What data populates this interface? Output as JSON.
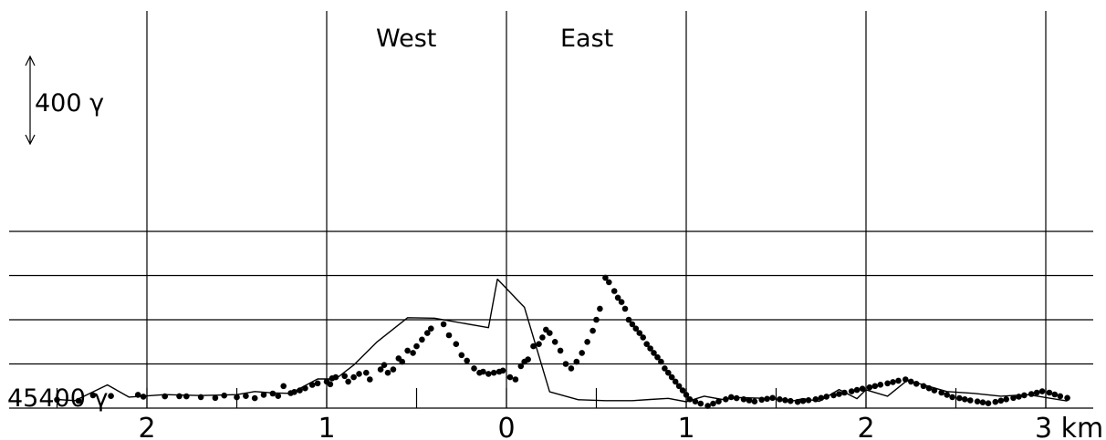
{
  "chart_data": {
    "type": "scatter",
    "title": "",
    "xlabel": "",
    "ylabel": "",
    "unit": "km",
    "baseline_label": "45400 γ",
    "scale_bar_label": "400 γ",
    "scale_bar_value": 400,
    "direction_labels": [
      "West",
      "East"
    ],
    "x_tick_labels": [
      "2",
      "1",
      "0",
      "1",
      "2",
      "3 km"
    ],
    "x_tick_values": [
      -2,
      -1,
      0,
      1,
      2,
      3
    ],
    "xlim": [
      -2.55,
      3.22
    ],
    "ylim": [
      45400,
      46200
    ],
    "grid": true,
    "series": [
      {
        "kind": "line",
        "points": [
          [
            -2.5,
            45439
          ],
          [
            -2.4,
            45434
          ],
          [
            -2.22,
            45505
          ],
          [
            -2.1,
            45450
          ],
          [
            -1.9,
            45461
          ],
          [
            -1.7,
            45457
          ],
          [
            -1.5,
            45461
          ],
          [
            -1.4,
            45475
          ],
          [
            -1.3,
            45469
          ],
          [
            -1.2,
            45467
          ],
          [
            -1.05,
            45532
          ],
          [
            -0.95,
            45532
          ],
          [
            -0.85,
            45595
          ],
          [
            -0.72,
            45700
          ],
          [
            -0.55,
            45809
          ],
          [
            -0.4,
            45807
          ],
          [
            -0.1,
            45764
          ],
          [
            -0.05,
            45984
          ],
          [
            0.1,
            45856
          ],
          [
            0.24,
            45474
          ],
          [
            0.4,
            45438
          ],
          [
            0.55,
            45434
          ],
          [
            0.7,
            45434
          ],
          [
            0.8,
            45439
          ],
          [
            0.9,
            45444
          ],
          [
            1.0,
            45429
          ],
          [
            1.1,
            45454
          ],
          [
            1.2,
            45439
          ],
          [
            1.3,
            45448
          ],
          [
            1.45,
            45444
          ],
          [
            1.6,
            45434
          ],
          [
            1.65,
            45443
          ],
          [
            1.74,
            45431
          ],
          [
            1.85,
            45484
          ],
          [
            1.95,
            45443
          ],
          [
            2.0,
            45483
          ],
          [
            2.12,
            45454
          ],
          [
            2.23,
            45526
          ],
          [
            2.45,
            45475
          ],
          [
            2.6,
            45467
          ],
          [
            2.75,
            45454
          ],
          [
            2.9,
            45461
          ],
          [
            3.12,
            45432
          ]
        ]
      },
      {
        "kind": "scatter",
        "points": [
          [
            -2.5,
            45438
          ],
          [
            -2.38,
            45433
          ],
          [
            -2.3,
            45458
          ],
          [
            -2.2,
            45455
          ],
          [
            -2.05,
            45460
          ],
          [
            -2.02,
            45452
          ],
          [
            -1.9,
            45453
          ],
          [
            -1.82,
            45454
          ],
          [
            -1.78,
            45453
          ],
          [
            -1.7,
            45450
          ],
          [
            -1.62,
            45446
          ],
          [
            -1.57,
            45457
          ],
          [
            -1.5,
            45449
          ],
          [
            -1.45,
            45455
          ],
          [
            -1.4,
            45445
          ],
          [
            -1.35,
            45460
          ],
          [
            -1.3,
            45466
          ],
          [
            -1.27,
            45455
          ],
          [
            -1.24,
            45500
          ],
          [
            -1.2,
            45468
          ],
          [
            -1.18,
            45473
          ],
          [
            -1.15,
            45480
          ],
          [
            -1.12,
            45490
          ],
          [
            -1.08,
            45505
          ],
          [
            -1.05,
            45512
          ],
          [
            -1.0,
            45520
          ],
          [
            -0.98,
            45508
          ],
          [
            -0.97,
            45535
          ],
          [
            -0.95,
            45540
          ],
          [
            -0.9,
            45545
          ],
          [
            -0.88,
            45520
          ],
          [
            -0.85,
            45540
          ],
          [
            -0.82,
            45555
          ],
          [
            -0.78,
            45560
          ],
          [
            -0.76,
            45530
          ],
          [
            -0.7,
            45575
          ],
          [
            -0.68,
            45595
          ],
          [
            -0.66,
            45560
          ],
          [
            -0.63,
            45575
          ],
          [
            -0.6,
            45625
          ],
          [
            -0.58,
            45610
          ],
          [
            -0.55,
            45660
          ],
          [
            -0.52,
            45650
          ],
          [
            -0.5,
            45680
          ],
          [
            -0.47,
            45710
          ],
          [
            -0.44,
            45740
          ],
          [
            -0.42,
            45760
          ],
          [
            -0.35,
            45780
          ],
          [
            -0.32,
            45730
          ],
          [
            -0.28,
            45690
          ],
          [
            -0.25,
            45640
          ],
          [
            -0.22,
            45615
          ],
          [
            -0.18,
            45580
          ],
          [
            -0.15,
            45560
          ],
          [
            -0.13,
            45565
          ],
          [
            -0.1,
            45555
          ],
          [
            -0.07,
            45560
          ],
          [
            -0.04,
            45565
          ],
          [
            -0.02,
            45570
          ],
          [
            0.02,
            45540
          ],
          [
            0.05,
            45530
          ],
          [
            0.08,
            45590
          ],
          [
            0.1,
            45610
          ],
          [
            0.12,
            45620
          ],
          [
            0.15,
            45680
          ],
          [
            0.18,
            45690
          ],
          [
            0.2,
            45720
          ],
          [
            0.22,
            45755
          ],
          [
            0.24,
            45740
          ],
          [
            0.27,
            45700
          ],
          [
            0.3,
            45660
          ],
          [
            0.33,
            45600
          ],
          [
            0.36,
            45580
          ],
          [
            0.39,
            45610
          ],
          [
            0.42,
            45650
          ],
          [
            0.45,
            45700
          ],
          [
            0.48,
            45750
          ],
          [
            0.5,
            45800
          ],
          [
            0.52,
            45850
          ],
          [
            0.55,
            45990
          ],
          [
            0.57,
            45970
          ],
          [
            0.6,
            45930
          ],
          [
            0.62,
            45900
          ],
          [
            0.64,
            45880
          ],
          [
            0.66,
            45850
          ],
          [
            0.68,
            45800
          ],
          [
            0.7,
            45780
          ],
          [
            0.72,
            45760
          ],
          [
            0.74,
            45740
          ],
          [
            0.76,
            45720
          ],
          [
            0.78,
            45690
          ],
          [
            0.8,
            45670
          ],
          [
            0.82,
            45650
          ],
          [
            0.84,
            45630
          ],
          [
            0.86,
            45610
          ],
          [
            0.88,
            45580
          ],
          [
            0.9,
            45560
          ],
          [
            0.92,
            45540
          ],
          [
            0.94,
            45520
          ],
          [
            0.96,
            45500
          ],
          [
            0.98,
            45480
          ],
          [
            1.0,
            45460
          ],
          [
            1.02,
            45440
          ],
          [
            1.05,
            45430
          ],
          [
            1.08,
            45420
          ],
          [
            1.12,
            45410
          ],
          [
            1.15,
            45420
          ],
          [
            1.18,
            45430
          ],
          [
            1.22,
            45440
          ],
          [
            1.25,
            45450
          ],
          [
            1.28,
            45445
          ],
          [
            1.32,
            45440
          ],
          [
            1.35,
            45435
          ],
          [
            1.38,
            45430
          ],
          [
            1.42,
            45438
          ],
          [
            1.45,
            45442
          ],
          [
            1.48,
            45446
          ],
          [
            1.52,
            45440
          ],
          [
            1.55,
            45436
          ],
          [
            1.58,
            45432
          ],
          [
            1.62,
            45428
          ],
          [
            1.65,
            45432
          ],
          [
            1.68,
            45436
          ],
          [
            1.72,
            45440
          ],
          [
            1.75,
            45446
          ],
          [
            1.78,
            45452
          ],
          [
            1.82,
            45458
          ],
          [
            1.85,
            45464
          ],
          [
            1.88,
            45470
          ],
          [
            1.92,
            45476
          ],
          [
            1.95,
            45482
          ],
          [
            1.98,
            45488
          ],
          [
            2.02,
            45494
          ],
          [
            2.05,
            45500
          ],
          [
            2.08,
            45506
          ],
          [
            2.12,
            45512
          ],
          [
            2.15,
            45518
          ],
          [
            2.18,
            45524
          ],
          [
            2.22,
            45530
          ],
          [
            2.25,
            45520
          ],
          [
            2.28,
            45510
          ],
          [
            2.32,
            45500
          ],
          [
            2.35,
            45490
          ],
          [
            2.38,
            45480
          ],
          [
            2.42,
            45470
          ],
          [
            2.45,
            45460
          ],
          [
            2.48,
            45450
          ],
          [
            2.52,
            45445
          ],
          [
            2.55,
            45440
          ],
          [
            2.58,
            45435
          ],
          [
            2.62,
            45430
          ],
          [
            2.65,
            45426
          ],
          [
            2.68,
            45422
          ],
          [
            2.72,
            45428
          ],
          [
            2.75,
            45434
          ],
          [
            2.78,
            45440
          ],
          [
            2.82,
            45446
          ],
          [
            2.85,
            45452
          ],
          [
            2.88,
            45458
          ],
          [
            2.92,
            45464
          ],
          [
            2.95,
            45470
          ],
          [
            2.98,
            45476
          ],
          [
            3.02,
            45470
          ],
          [
            3.05,
            45462
          ],
          [
            3.08,
            45454
          ],
          [
            3.12,
            45446
          ]
        ]
      }
    ]
  }
}
